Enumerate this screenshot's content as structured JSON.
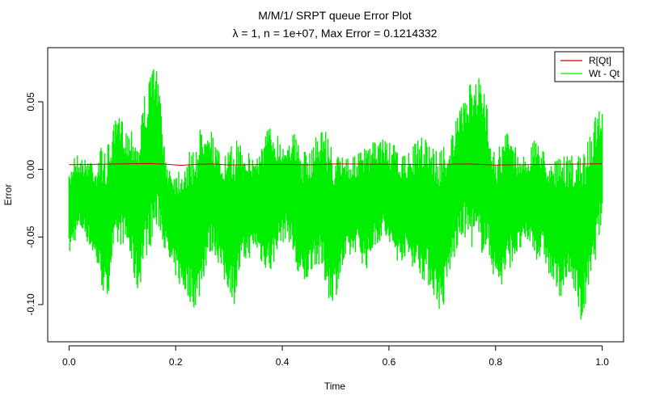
{
  "chart_data": {
    "type": "line",
    "title": "M/M/1/ SRPT queue Error Plot",
    "subtitle": "λ = 1, n = 1e+07, Max Error = 0.1214332",
    "xlabel": "Time",
    "ylabel": "Error",
    "xlim": [
      -0.04,
      1.04
    ],
    "ylim": [
      -0.1275,
      0.09
    ],
    "x_ticks": [
      0.0,
      0.2,
      0.4,
      0.6,
      0.8,
      1.0
    ],
    "x_tick_labels": [
      "0.0",
      "0.2",
      "0.4",
      "0.6",
      "0.8",
      "1.0"
    ],
    "y_ticks": [
      -0.1,
      -0.05,
      0.0,
      0.05
    ],
    "y_tick_labels": [
      "-0.10",
      "-0.05",
      "0.00",
      "0.05"
    ],
    "grid": false,
    "legend_position": "top-right",
    "series": [
      {
        "name": "R[Qt]",
        "color": "#cc0000",
        "kind": "line",
        "x": [
          0.0,
          0.03,
          0.06,
          0.09,
          0.12,
          0.15,
          0.18,
          0.21,
          0.24,
          0.27,
          0.3,
          0.35,
          0.4,
          0.45,
          0.5,
          0.55,
          0.6,
          0.65,
          0.7,
          0.75,
          0.8,
          0.85,
          0.9,
          0.95,
          1.0
        ],
        "y": [
          0.0035,
          0.0036,
          0.0038,
          0.004,
          0.0042,
          0.0043,
          0.0039,
          0.003,
          0.0038,
          0.004,
          0.0033,
          0.0036,
          0.0037,
          0.0034,
          0.004,
          0.0039,
          0.0038,
          0.0036,
          0.0038,
          0.004,
          0.0032,
          0.0035,
          0.0037,
          0.0039,
          0.0042
        ]
      },
      {
        "name": "Wt - Qt",
        "color": "#00ee00",
        "kind": "envelope",
        "x": [
          0.0,
          0.01,
          0.02,
          0.03,
          0.04,
          0.05,
          0.06,
          0.07,
          0.08,
          0.09,
          0.1,
          0.11,
          0.12,
          0.13,
          0.14,
          0.15,
          0.16,
          0.17,
          0.18,
          0.19,
          0.2,
          0.21,
          0.22,
          0.23,
          0.24,
          0.25,
          0.26,
          0.27,
          0.28,
          0.29,
          0.3,
          0.31,
          0.32,
          0.33,
          0.34,
          0.35,
          0.36,
          0.37,
          0.38,
          0.39,
          0.4,
          0.41,
          0.42,
          0.43,
          0.44,
          0.45,
          0.46,
          0.47,
          0.48,
          0.49,
          0.5,
          0.51,
          0.52,
          0.53,
          0.54,
          0.55,
          0.56,
          0.57,
          0.58,
          0.59,
          0.6,
          0.61,
          0.62,
          0.63,
          0.64,
          0.65,
          0.66,
          0.67,
          0.68,
          0.69,
          0.7,
          0.71,
          0.72,
          0.73,
          0.74,
          0.75,
          0.76,
          0.77,
          0.78,
          0.79,
          0.8,
          0.81,
          0.82,
          0.83,
          0.84,
          0.85,
          0.86,
          0.87,
          0.88,
          0.89,
          0.9,
          0.91,
          0.92,
          0.93,
          0.94,
          0.95,
          0.96,
          0.97,
          0.98,
          0.99,
          1.0
        ],
        "upper": [
          -0.005,
          0.015,
          0.01,
          0.008,
          0.012,
          0.005,
          0.018,
          0.015,
          0.028,
          0.04,
          0.038,
          0.03,
          0.035,
          0.025,
          0.055,
          0.065,
          0.085,
          0.06,
          0.01,
          0.005,
          0.0,
          0.005,
          0.01,
          0.015,
          0.025,
          0.035,
          0.045,
          0.025,
          0.015,
          0.01,
          0.015,
          0.02,
          0.025,
          0.02,
          0.01,
          0.012,
          0.018,
          0.03,
          0.035,
          0.028,
          0.02,
          0.025,
          0.03,
          0.02,
          0.015,
          0.01,
          0.025,
          0.03,
          0.035,
          0.02,
          0.01,
          0.012,
          0.015,
          0.008,
          0.012,
          0.015,
          0.018,
          0.02,
          0.022,
          0.025,
          0.02,
          0.018,
          0.012,
          0.01,
          0.015,
          0.02,
          0.025,
          0.03,
          0.02,
          0.015,
          0.018,
          0.022,
          0.03,
          0.04,
          0.055,
          0.06,
          0.075,
          0.07,
          0.055,
          0.035,
          0.012,
          0.02,
          0.03,
          0.028,
          0.015,
          0.01,
          0.012,
          0.02,
          0.025,
          0.015,
          0.01,
          0.012,
          0.008,
          0.01,
          0.012,
          0.008,
          0.012,
          0.02,
          0.03,
          0.045,
          0.052
        ],
        "lower": [
          -0.065,
          -0.055,
          -0.045,
          -0.05,
          -0.06,
          -0.07,
          -0.085,
          -0.105,
          -0.07,
          -0.06,
          -0.055,
          -0.06,
          -0.08,
          -0.095,
          -0.07,
          -0.06,
          -0.05,
          -0.045,
          -0.06,
          -0.075,
          -0.08,
          -0.09,
          -0.095,
          -0.1,
          -0.106,
          -0.085,
          -0.07,
          -0.06,
          -0.07,
          -0.085,
          -0.09,
          -0.1,
          -0.08,
          -0.07,
          -0.065,
          -0.06,
          -0.07,
          -0.075,
          -0.08,
          -0.06,
          -0.055,
          -0.05,
          -0.065,
          -0.085,
          -0.09,
          -0.08,
          -0.07,
          -0.075,
          -0.085,
          -0.1,
          -0.095,
          -0.08,
          -0.07,
          -0.065,
          -0.06,
          -0.07,
          -0.075,
          -0.06,
          -0.055,
          -0.05,
          -0.06,
          -0.065,
          -0.07,
          -0.065,
          -0.07,
          -0.075,
          -0.08,
          -0.085,
          -0.09,
          -0.1,
          -0.11,
          -0.085,
          -0.07,
          -0.06,
          -0.05,
          -0.055,
          -0.06,
          -0.065,
          -0.06,
          -0.07,
          -0.085,
          -0.09,
          -0.08,
          -0.07,
          -0.065,
          -0.06,
          -0.055,
          -0.06,
          -0.07,
          -0.065,
          -0.08,
          -0.09,
          -0.095,
          -0.09,
          -0.085,
          -0.09,
          -0.121,
          -0.1,
          -0.085,
          -0.06,
          -0.04
        ]
      }
    ]
  }
}
